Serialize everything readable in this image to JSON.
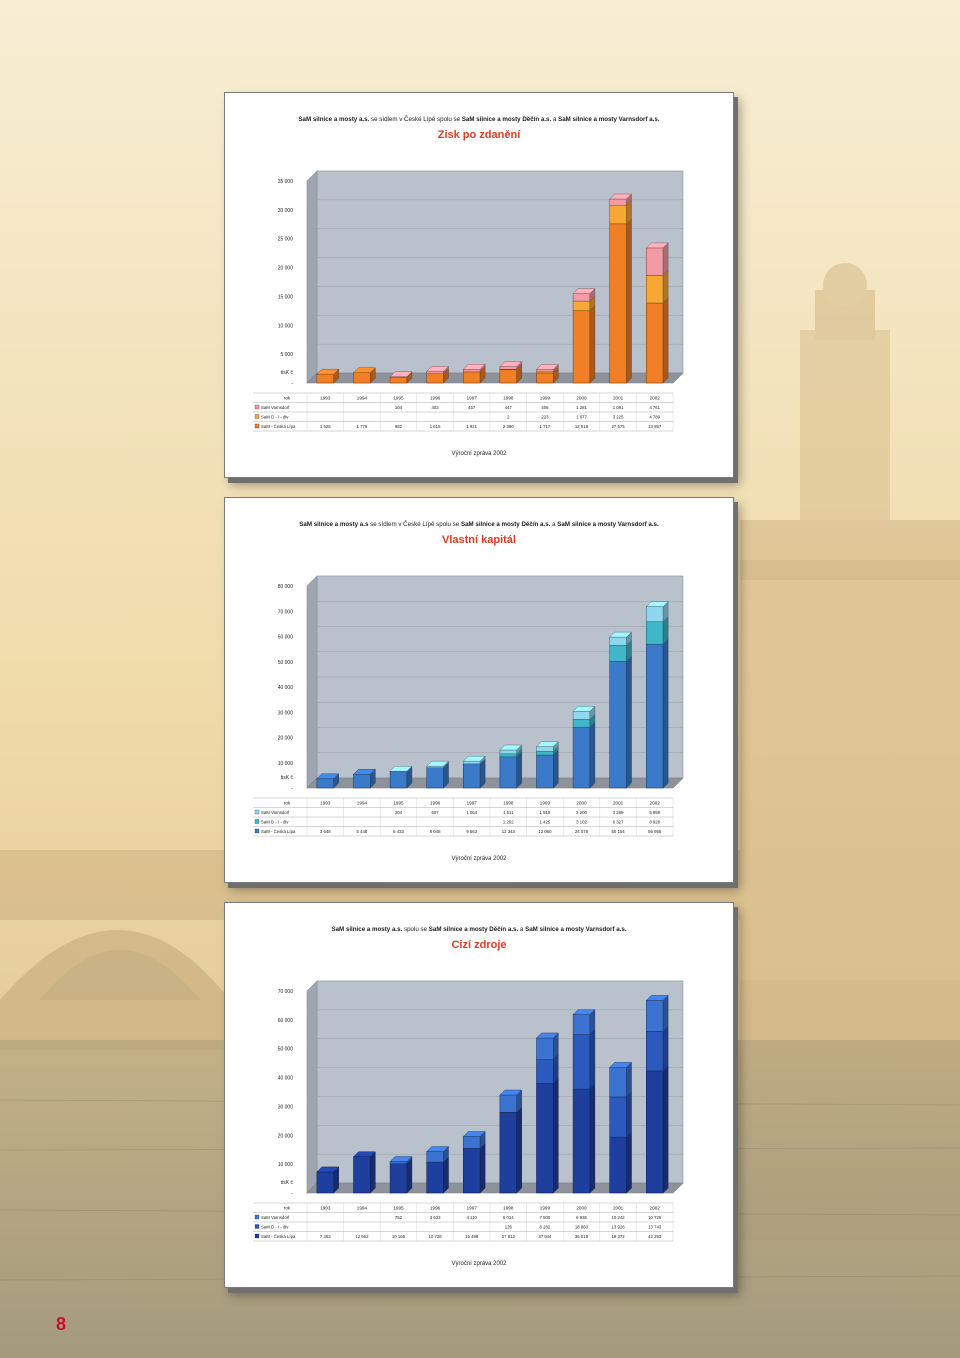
{
  "page": {
    "number": "8"
  },
  "charts": [
    {
      "company_prefix": "SaM silnice a mosty a.s.",
      "company_middle": " se sídlem v České Lípě spolu se ",
      "company_bold2": "SaM silnice a mosty Děčín a.s.",
      "company_and": " a ",
      "company_bold3": "SaM silnice a mosty Varnsdorf a.s.",
      "title": "Zisk po zdanění",
      "title_color": "#e23b22",
      "unit": "tisK č",
      "row_header": "rok",
      "footer": "Výroční zpráva 2002",
      "series_colors": [
        "#f07f26",
        "#f7a733",
        "#f29ba5"
      ]
    },
    {
      "company_prefix": "SaM silnice a mosty a.s",
      "company_middle": " se sídlem v České Lípě spolu se ",
      "company_bold2": "SaM silnice a mosty Děčín a.s.",
      "company_and": " a ",
      "company_bold3": "SaM silnice a mosty Varnsdorf a.s.",
      "title": "Vlastní kapitál",
      "title_color": "#e23b22",
      "unit": "tisK č",
      "row_header": "rok",
      "footer": "Výroční zpráva 2002",
      "series_colors": [
        "#3b79c9",
        "#3fb7c9",
        "#8fd6ef"
      ]
    },
    {
      "company_prefix": "SaM silnice a mosty a.s.",
      "company_middle": " spolu se ",
      "company_bold2": "SaM silnice a mosty Děčín a.s.",
      "company_and": " a ",
      "company_bold3": "SaM silnice a mosty Varnsdorf a.s.",
      "title": "Cizí zdroje",
      "title_color": "#e23b22",
      "unit": "tisK č",
      "row_header": "rok",
      "footer": "Výroční zpráva 2002",
      "series_colors": [
        "#1f3f9e",
        "#2b59be",
        "#3d73d0"
      ]
    }
  ],
  "chart_data": [
    {
      "type": "bar",
      "stacked": true,
      "title": "Zisk po zdanění",
      "ylabel": "tisK č",
      "categories": [
        "1993",
        "1994",
        "1995",
        "1996",
        "1997",
        "1998",
        "1999",
        "2000",
        "2001",
        "2002"
      ],
      "ylim": [
        0,
        35000
      ],
      "yticks": [
        "35 000",
        "30 000",
        "25 000",
        "20 000",
        "15 000",
        "10 000",
        "5 000",
        "-"
      ],
      "yticks_values": [
        35000,
        30000,
        25000,
        20000,
        15000,
        10000,
        5000,
        0
      ],
      "series": [
        {
          "name": "SaM - Česká Lípa",
          "values": [
            1525,
            1775,
            982,
            1616,
            1921,
            2380,
            1717,
            12518,
            27575,
            13857
          ],
          "labels": [
            "1 525",
            "1 775",
            "982",
            "1 616",
            "1 921",
            "2 380",
            "1 717",
            "12 518",
            "27 575",
            "13 857"
          ]
        },
        {
          "name": "SaM D - í - div",
          "values": [
            0,
            0,
            0,
            0,
            0,
            2,
            223,
            1677,
            3225,
            4789
          ],
          "labels": [
            "",
            "",
            "",
            "",
            "",
            "2",
            "223",
            "1 677",
            "3 225",
            "4 789"
          ]
        },
        {
          "name": "SaM Varnsdorf",
          "values": [
            0,
            0,
            104,
            403,
            457,
            447,
            406,
            1281,
            1081,
            4761
          ],
          "labels": [
            "",
            "",
            "104",
            "403",
            "457",
            "447",
            "406",
            "1 281",
            "1 081",
            "4 761"
          ]
        }
      ],
      "grid": true
    },
    {
      "type": "bar",
      "stacked": true,
      "title": "Vlastní kapitál",
      "ylabel": "tisK č",
      "categories": [
        "1993",
        "1994",
        "1995",
        "1996",
        "1997",
        "1998",
        "1999",
        "2000",
        "2001",
        "2002"
      ],
      "ylim": [
        0,
        80000
      ],
      "yticks": [
        "80 000",
        "70 000",
        "60 000",
        "50 000",
        "40 000",
        "30 000",
        "20 000",
        "10 000",
        "-"
      ],
      "yticks_values": [
        80000,
        70000,
        60000,
        50000,
        40000,
        30000,
        20000,
        10000,
        0
      ],
      "series": [
        {
          "name": "SaM - Česká Lípa",
          "values": [
            3648,
            5448,
            6433,
            8048,
            9563,
            12343,
            13060,
            24078,
            50154,
            56955
          ],
          "labels": [
            "3 648",
            "5 448",
            "6 433",
            "8 048",
            "9 563",
            "12 343",
            "13 060",
            "24 078",
            "50 154",
            "56 955"
          ]
        },
        {
          "name": "SaM D - í - div",
          "values": [
            0,
            0,
            0,
            0,
            0,
            1202,
            1425,
            3102,
            6327,
            8928
          ],
          "labels": [
            "",
            "",
            "",
            "",
            "",
            "1 202",
            "1 425",
            "3 102",
            "6 327",
            "8 928"
          ]
        },
        {
          "name": "SaM Varnsdorf",
          "values": [
            0,
            0,
            204,
            607,
            1064,
            1511,
            1919,
            3200,
            3289,
            5959
          ],
          "labels": [
            "",
            "",
            "204",
            "607",
            "1 064",
            "1 511",
            "1 919",
            "3 200",
            "3 289",
            "5 959"
          ]
        }
      ],
      "grid": true
    },
    {
      "type": "bar",
      "stacked": true,
      "title": "Cizí zdroje",
      "ylabel": "tisK č",
      "categories": [
        "1993",
        "1994",
        "1995",
        "1996",
        "1997",
        "1998",
        "1999",
        "2000",
        "2001",
        "2002"
      ],
      "ylim": [
        0,
        70000
      ],
      "yticks": [
        "70 000",
        "60 000",
        "50 000",
        "40 000",
        "30 000",
        "20 000",
        "10 000",
        "-"
      ],
      "yticks_values": [
        70000,
        60000,
        50000,
        40000,
        30000,
        20000,
        10000,
        0
      ],
      "series": [
        {
          "name": "SaM - Česká Lípa",
          "values": [
            7303,
            12562,
            10165,
            10728,
            15488,
            27812,
            37944,
            36019,
            19372,
            42293
          ],
          "labels": [
            "7 303",
            "12 562",
            "10 165",
            "10 728",
            "15 488",
            "27 812",
            "37 944",
            "36 019",
            "19 372",
            "42 293"
          ]
        },
        {
          "name": "SaM D - í - div",
          "values": [
            0,
            0,
            0,
            0,
            0,
            126,
            8282,
            18860,
            13926,
            13743
          ],
          "labels": [
            "",
            "",
            "",
            "",
            "",
            "126",
            "8 282",
            "18 860",
            "13 926",
            "13 743"
          ]
        },
        {
          "name": "SaM Varnsdorf",
          "values": [
            0,
            0,
            752,
            3633,
            4110,
            6014,
            7500,
            6936,
            10242,
            10726
          ],
          "labels": [
            "",
            "",
            "752",
            "3 633",
            "4 110",
            "6 014",
            "7 500",
            "6 936",
            "10 242",
            "10 726"
          ]
        }
      ],
      "grid": true
    }
  ]
}
